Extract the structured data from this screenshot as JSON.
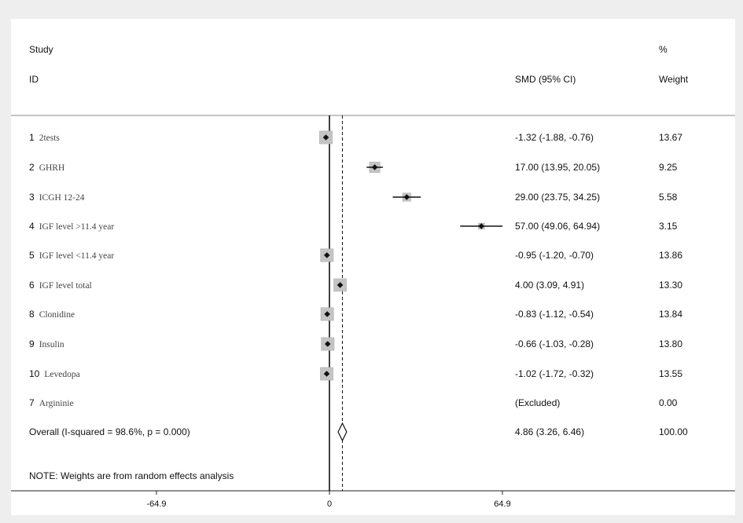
{
  "header": {
    "study": "Study",
    "id": "ID",
    "smd": "SMD (95% CI)",
    "pct": "%",
    "weight": "Weight"
  },
  "note": "NOTE: Weights are from random effects analysis",
  "chart_data": {
    "type": "forest",
    "xlim": [
      -64.9,
      64.9
    ],
    "xticks": [
      "-64.9",
      "0",
      "64.9"
    ],
    "null_line": 0,
    "studies": [
      {
        "num": "1",
        "name": "2tests",
        "es": -1.32,
        "lo": -1.88,
        "hi": -0.76,
        "ci_text": "-1.32 (-1.88, -0.76)",
        "weight": 13.67,
        "weight_text": "13.67"
      },
      {
        "num": "2",
        "name": "GHRH",
        "es": 17.0,
        "lo": 13.95,
        "hi": 20.05,
        "ci_text": "17.00 (13.95, 20.05)",
        "weight": 9.25,
        "weight_text": "9.25"
      },
      {
        "num": "3",
        "name": "ICGH 12-24",
        "es": 29.0,
        "lo": 23.75,
        "hi": 34.25,
        "ci_text": "29.00 (23.75, 34.25)",
        "weight": 5.58,
        "weight_text": "5.58"
      },
      {
        "num": "4",
        "name": "IGF level >11.4 year",
        "es": 57.0,
        "lo": 49.06,
        "hi": 64.94,
        "ci_text": "57.00 (49.06, 64.94)",
        "weight": 3.15,
        "weight_text": "3.15"
      },
      {
        "num": "5",
        "name": "IGF level <11.4 year",
        "es": -0.95,
        "lo": -1.2,
        "hi": -0.7,
        "ci_text": "-0.95 (-1.20, -0.70)",
        "weight": 13.86,
        "weight_text": "13.86"
      },
      {
        "num": "6",
        "name": "IGF level total",
        "es": 4.0,
        "lo": 3.09,
        "hi": 4.91,
        "ci_text": "4.00 (3.09, 4.91)",
        "weight": 13.3,
        "weight_text": "13.30"
      },
      {
        "num": "8",
        "name": "Clonidine",
        "es": -0.83,
        "lo": -1.12,
        "hi": -0.54,
        "ci_text": "-0.83 (-1.12, -0.54)",
        "weight": 13.84,
        "weight_text": "13.84"
      },
      {
        "num": "9",
        "name": "Insulin",
        "es": -0.66,
        "lo": -1.03,
        "hi": -0.28,
        "ci_text": "-0.66 (-1.03, -0.28)",
        "weight": 13.8,
        "weight_text": "13.80"
      },
      {
        "num": "10",
        "name": "Levedopa",
        "es": -1.02,
        "lo": -1.72,
        "hi": -0.32,
        "ci_text": "-1.02 (-1.72, -0.32)",
        "weight": 13.55,
        "weight_text": "13.55"
      },
      {
        "num": "7",
        "name": "Argininie",
        "es": null,
        "lo": null,
        "hi": null,
        "ci_text": "(Excluded)",
        "weight": 0.0,
        "weight_text": "0.00"
      }
    ],
    "overall": {
      "label": "Overall  (I-squared = 98.6%, p = 0.000)",
      "es": 4.86,
      "lo": 3.26,
      "hi": 6.46,
      "ci_text": "4.86 (3.26, 6.46)",
      "weight_text": "100.00"
    }
  }
}
